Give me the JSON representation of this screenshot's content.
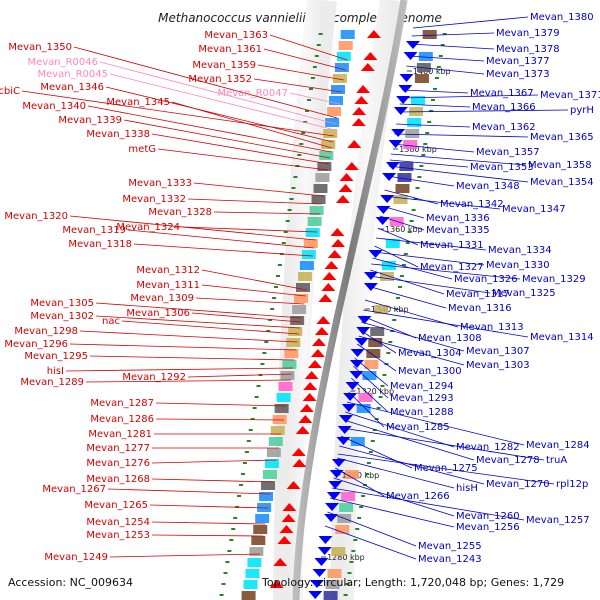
{
  "map": {
    "title": "Methanococcus vannielii SB, complete genome",
    "accession": "Accession: NC_009634",
    "topology": "Topology: circular; Length: 1,720,048 bp; Genes: 1,729"
  },
  "scale_marks": [
    "1400 kbp",
    "1380 kbp",
    "1360 kbp",
    "1340 kbp",
    "1320 kbp",
    "1300 kbp",
    "1280 kbp"
  ],
  "colors": {
    "left_label": "#d40000",
    "left_line": "#d40000",
    "right_label": "#0000cc",
    "right_line": "#0000cc",
    "rna_label": "#ff88bb",
    "rna_line": "#ff88bb",
    "forward_gene": "#ff0000",
    "reverse_gene": "#0000ff",
    "tick": "#228822",
    "cog_palette": [
      "#00e5ff",
      "#1e90ff",
      "#ff66cc",
      "#a0a0a0",
      "#c8b45a",
      "#7a4a2a",
      "#3a3aa0",
      "#50d0a0",
      "#ff9966",
      "#606060"
    ]
  },
  "left_labels": [
    {
      "text": "Mevan_1363",
      "kind": "protein"
    },
    {
      "text": "Mevan_1361",
      "kind": "protein"
    },
    {
      "text": "Mevan_1359",
      "kind": "protein"
    },
    {
      "text": "Mevan_1352",
      "kind": "protein"
    },
    {
      "text": "Mevan_R0047",
      "kind": "rna"
    },
    {
      "text": "Mevan_1350",
      "kind": "protein"
    },
    {
      "text": "Mevan_R0046",
      "kind": "rna"
    },
    {
      "text": "Mevan_R0045",
      "kind": "rna"
    },
    {
      "text": "cbiC",
      "kind": "protein"
    },
    {
      "text": "Mevan_1346",
      "kind": "protein"
    },
    {
      "text": "Mevan_1345",
      "kind": "protein"
    },
    {
      "text": "Mevan_1340",
      "kind": "protein"
    },
    {
      "text": "Mevan_1339",
      "kind": "protein"
    },
    {
      "text": "Mevan_1338",
      "kind": "protein"
    },
    {
      "text": "metG",
      "kind": "protein"
    },
    {
      "text": "Mevan_1333",
      "kind": "protein"
    },
    {
      "text": "Mevan_1332",
      "kind": "protein"
    },
    {
      "text": "Mevan_1328",
      "kind": "protein"
    },
    {
      "text": "Mevan_1320",
      "kind": "protein"
    },
    {
      "text": "Mevan_1324",
      "kind": "protein"
    },
    {
      "text": "Mevan_1319",
      "kind": "protein"
    },
    {
      "text": "Mevan_1318",
      "kind": "protein"
    },
    {
      "text": "Mevan_1312",
      "kind": "protein"
    },
    {
      "text": "Mevan_1311",
      "kind": "protein"
    },
    {
      "text": "Mevan_1309",
      "kind": "protein"
    },
    {
      "text": "Mevan_1305",
      "kind": "protein"
    },
    {
      "text": "Mevan_1306",
      "kind": "protein"
    },
    {
      "text": "Mevan_1302",
      "kind": "protein"
    },
    {
      "text": "nac",
      "kind": "protein"
    },
    {
      "text": "Mevan_1298",
      "kind": "protein"
    },
    {
      "text": "Mevan_1296",
      "kind": "protein"
    },
    {
      "text": "Mevan_1295",
      "kind": "protein"
    },
    {
      "text": "hisI",
      "kind": "protein"
    },
    {
      "text": "Mevan_1292",
      "kind": "protein"
    },
    {
      "text": "Mevan_1289",
      "kind": "protein"
    },
    {
      "text": "Mevan_1287",
      "kind": "protein"
    },
    {
      "text": "Mevan_1286",
      "kind": "protein"
    },
    {
      "text": "Mevan_1281",
      "kind": "protein"
    },
    {
      "text": "Mevan_1277",
      "kind": "protein"
    },
    {
      "text": "Mevan_1276",
      "kind": "protein"
    },
    {
      "text": "Mevan_1268",
      "kind": "protein"
    },
    {
      "text": "Mevan_1267",
      "kind": "protein"
    },
    {
      "text": "Mevan_1265",
      "kind": "protein"
    },
    {
      "text": "Mevan_1254",
      "kind": "protein"
    },
    {
      "text": "Mevan_1253",
      "kind": "protein"
    },
    {
      "text": "Mevan_1249",
      "kind": "protein"
    }
  ],
  "right_labels": [
    {
      "text": "Mevan_1380"
    },
    {
      "text": "Mevan_1379"
    },
    {
      "text": "Mevan_1378"
    },
    {
      "text": "Mevan_1377"
    },
    {
      "text": "Mevan_1373"
    },
    {
      "text": "Mevan_1367"
    },
    {
      "text": "Mevan_1371"
    },
    {
      "text": "Mevan_1366"
    },
    {
      "text": "pyrH"
    },
    {
      "text": "Mevan_1362"
    },
    {
      "text": "Mevan_1365"
    },
    {
      "text": "Mevan_1357"
    },
    {
      "text": "Mevan_1358"
    },
    {
      "text": "Mevan_1353"
    },
    {
      "text": "Mevan_1354"
    },
    {
      "text": "Mevan_1348"
    },
    {
      "text": "Mevan_1342"
    },
    {
      "text": "Mevan_1347"
    },
    {
      "text": "Mevan_1336"
    },
    {
      "text": "Mevan_1335"
    },
    {
      "text": "Mevan_1331"
    },
    {
      "text": "Mevan_1334"
    },
    {
      "text": "Mevan_1327"
    },
    {
      "text": "Mevan_1330"
    },
    {
      "text": "Mevan_1326"
    },
    {
      "text": "Mevan_1329"
    },
    {
      "text": "Mevan_1317"
    },
    {
      "text": "Mevan_1325"
    },
    {
      "text": "Mevan_1316"
    },
    {
      "text": "Mevan_1313"
    },
    {
      "text": "Mevan_1314"
    },
    {
      "text": "Mevan_1308"
    },
    {
      "text": "Mevan_1307"
    },
    {
      "text": "Mevan_1304"
    },
    {
      "text": "Mevan_1303"
    },
    {
      "text": "Mevan_1300"
    },
    {
      "text": "Mevan_1294"
    },
    {
      "text": "Mevan_1293"
    },
    {
      "text": "Mevan_1288"
    },
    {
      "text": "Mevan_1285"
    },
    {
      "text": "Mevan_1284"
    },
    {
      "text": "Mevan_1282"
    },
    {
      "text": "Mevan_1278"
    },
    {
      "text": "truA"
    },
    {
      "text": "Mevan_1275"
    },
    {
      "text": "Mevan_1270"
    },
    {
      "text": "rpl12p"
    },
    {
      "text": "hisH"
    },
    {
      "text": "Mevan_1266"
    },
    {
      "text": "Mevan_1260"
    },
    {
      "text": "Mevan_1257"
    },
    {
      "text": "Mevan_1256"
    },
    {
      "text": "Mevan_1255"
    },
    {
      "text": "Mevan_1243"
    }
  ]
}
